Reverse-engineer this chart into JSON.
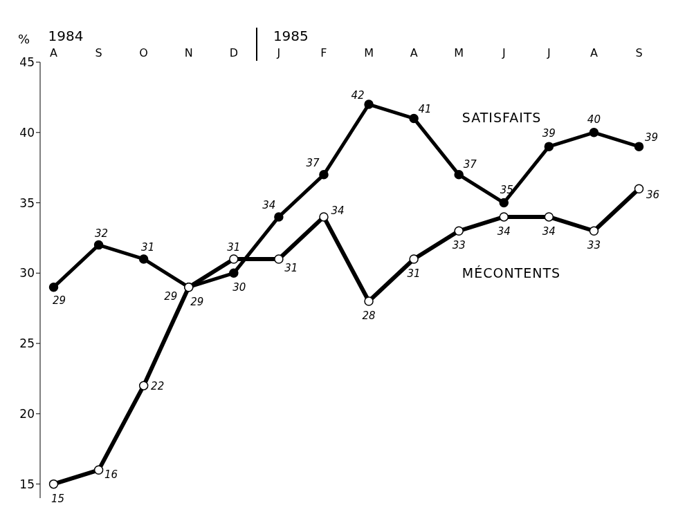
{
  "chart_data": {
    "type": "line",
    "ylabel": "%",
    "categories": [
      "A",
      "S",
      "O",
      "N",
      "D",
      "J",
      "F",
      "M",
      "A",
      "M",
      "J",
      "J",
      "A",
      "S"
    ],
    "series": [
      {
        "name": "SATISFAITS",
        "color": "#000000",
        "values": [
          29,
          32,
          31,
          29,
          30,
          34,
          37,
          42,
          41,
          37,
          35,
          39,
          40,
          39
        ]
      },
      {
        "name": "MÉCONTENTS",
        "color": "#000000",
        "values": [
          15,
          16,
          22,
          29,
          31,
          31,
          34,
          28,
          31,
          33,
          34,
          34,
          33,
          36
        ]
      }
    ],
    "annotations": [
      "1984",
      "1985"
    ],
    "ylim": [
      14,
      45
    ],
    "yticks": [
      15,
      20,
      25,
      30,
      35,
      40,
      45
    ],
    "grid": false,
    "legend": false,
    "marker": "circle",
    "data_labels": true
  }
}
